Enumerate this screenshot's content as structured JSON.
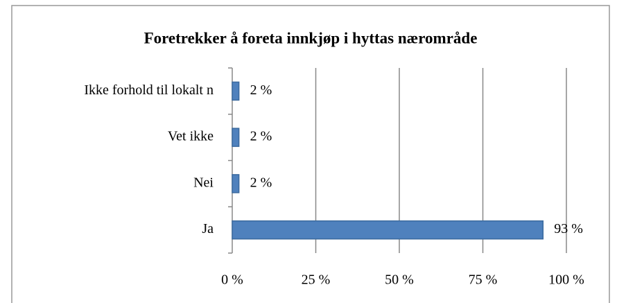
{
  "chart_data": {
    "type": "bar",
    "orientation": "horizontal",
    "title": "Foretrekker å foreta innkjøp i hyttas nærområde",
    "categories": [
      "Ikke forhold til lokalt n",
      "Vet ikke",
      "Nei",
      "Ja"
    ],
    "values": [
      2,
      2,
      2,
      93
    ],
    "value_labels": [
      "2 %",
      "2 %",
      "2 %",
      "93 %"
    ],
    "color": "#4f81bd",
    "xlim": [
      0,
      100
    ],
    "xticks": [
      {
        "value": 0,
        "label": "0 %"
      },
      {
        "value": 25,
        "label": "25 %"
      },
      {
        "value": 50,
        "label": "50 %"
      },
      {
        "value": 75,
        "label": "75 %"
      },
      {
        "value": 100,
        "label": "100 %"
      }
    ],
    "grid": true
  }
}
